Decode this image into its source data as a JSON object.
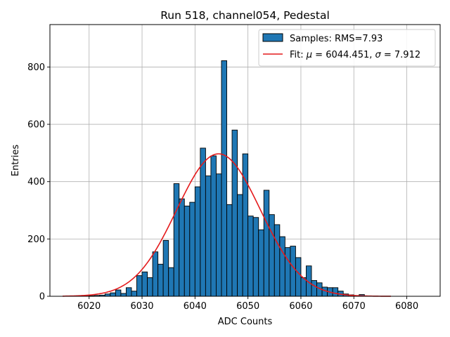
{
  "chart_data": {
    "type": "bar",
    "title": "Run 518, channel054, Pedestal",
    "xlabel": "ADC Counts",
    "ylabel": "Entries",
    "xlim": [
      6012.6,
      6086.3
    ],
    "ylim": [
      0,
      948
    ],
    "xticks": [
      6020,
      6030,
      6040,
      6050,
      6060,
      6070,
      6080
    ],
    "yticks": [
      0,
      200,
      400,
      600,
      800
    ],
    "grid": true,
    "bin_width": 1,
    "histogram": {
      "name": "Samples: RMS=7.93",
      "bin_starts": [
        6016,
        6017,
        6018,
        6019,
        6020,
        6021,
        6022,
        6023,
        6024,
        6025,
        6026,
        6027,
        6028,
        6029,
        6030,
        6031,
        6032,
        6033,
        6034,
        6035,
        6036,
        6037,
        6038,
        6039,
        6040,
        6041,
        6042,
        6043,
        6044,
        6045,
        6046,
        6047,
        6048,
        6049,
        6050,
        6051,
        6052,
        6053,
        6054,
        6055,
        6056,
        6057,
        6058,
        6059,
        6060,
        6061,
        6062,
        6063,
        6064,
        6065,
        6066,
        6067,
        6068,
        6069,
        6070,
        6071,
        6072,
        6073,
        6074,
        6075,
        6076
      ],
      "values": [
        0,
        0,
        0,
        1,
        2,
        3,
        4,
        8,
        12,
        22,
        10,
        30,
        18,
        72,
        85,
        65,
        155,
        112,
        195,
        100,
        393,
        340,
        315,
        328,
        382,
        517,
        420,
        490,
        427,
        822,
        320,
        580,
        355,
        497,
        280,
        275,
        232,
        370,
        285,
        250,
        208,
        170,
        175,
        135,
        65,
        106,
        55,
        47,
        32,
        30,
        30,
        18,
        8,
        5,
        2,
        6,
        1,
        0,
        0,
        0,
        0
      ]
    },
    "fit": {
      "name": "Fit: μ = 6044.451, σ = 7.912",
      "label_mu_symbol": "μ",
      "label_sigma_symbol": "σ",
      "label_prefix": "Fit: ",
      "label_mu_text": " = 6044.451, ",
      "label_sigma_text": " = 7.912",
      "mu": 6044.451,
      "sigma": 7.912,
      "amplitude": 497,
      "x_range": [
        6015,
        6077
      ]
    },
    "legend_position": "upper right",
    "colors": {
      "bar_fill": "#1f77b4",
      "bar_edge": "#000000",
      "fit_line": "#e41a1c",
      "grid": "#b0b0b0"
    }
  }
}
